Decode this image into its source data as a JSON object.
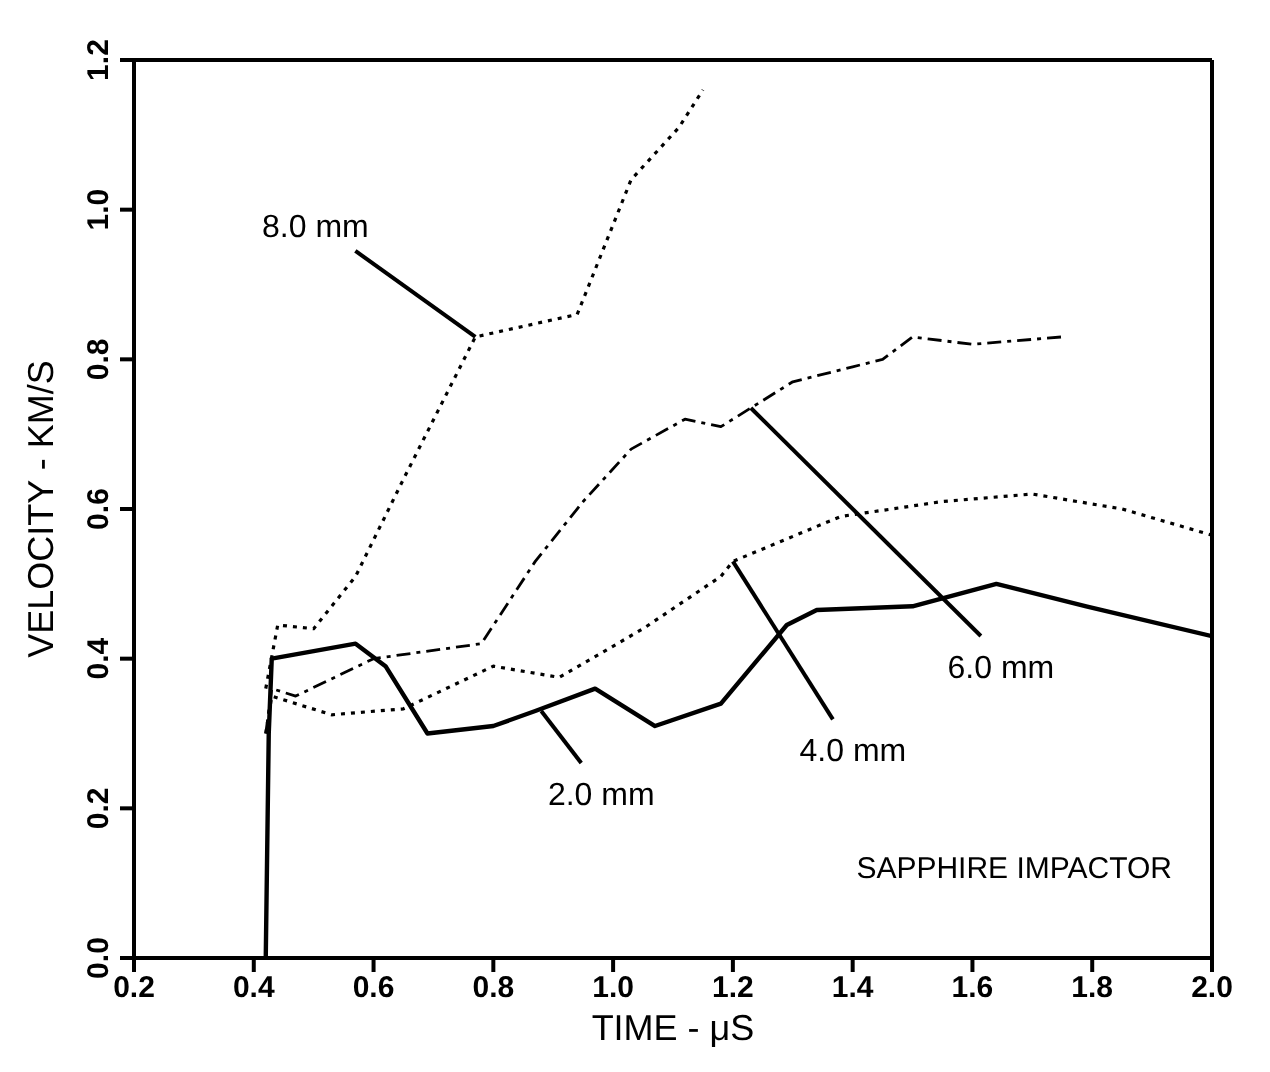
{
  "chart_data": {
    "type": "line",
    "xlabel": "TIME - μS",
    "ylabel": "VELOCITY - KM/S",
    "xlim": [
      0.2,
      2.0
    ],
    "xticks": [
      {
        "value": 0.2,
        "label": "0.2"
      },
      {
        "value": 0.4,
        "label": "0.4"
      },
      {
        "value": 0.6,
        "label": "0.6"
      },
      {
        "value": 0.8,
        "label": "0.8"
      },
      {
        "value": 1.0,
        "label": "1.0"
      },
      {
        "value": 1.2,
        "label": "1.2"
      },
      {
        "value": 1.4,
        "label": "1.4"
      },
      {
        "value": 1.6,
        "label": "1.6"
      },
      {
        "value": 1.8,
        "label": "1.8"
      },
      {
        "value": 2.0,
        "label": "2.0"
      }
    ],
    "ylim": [
      0,
      1.2
    ],
    "yticks": [
      {
        "value": 0,
        "label": "0.0"
      },
      {
        "value": 0.2,
        "label": "0.2"
      },
      {
        "value": 0.4,
        "label": "0.4"
      },
      {
        "value": 0.6,
        "label": "0.6"
      },
      {
        "value": 0.8,
        "label": "0.8"
      },
      {
        "value": 1.0,
        "label": "1.0"
      },
      {
        "value": 1.2,
        "label": "1.2"
      }
    ],
    "legend": false,
    "marker": "none",
    "series": [
      {
        "color": "#000000",
        "line_style": "solid",
        "x": [
          0.42,
          0.425,
          0.43,
          0.5,
          0.57,
          0.62,
          0.69,
          0.8,
          0.87,
          0.97,
          1.07,
          1.18,
          1.29,
          1.34,
          1.5,
          1.64,
          1.79,
          2.0
        ],
        "values": [
          0,
          0.3,
          0.4,
          0.41,
          0.42,
          0.39,
          0.3,
          0.31,
          0.33,
          0.36,
          0.31,
          0.34,
          0.445,
          0.465,
          0.47,
          0.5,
          0.47,
          0.43
        ]
      },
      {
        "color": "#000000",
        "line_style": "dotted",
        "x": [
          0.42,
          0.43,
          0.53,
          0.65,
          0.8,
          0.91,
          1.05,
          1.18,
          1.2,
          1.38,
          1.55,
          1.7,
          1.85,
          2.0
        ],
        "values": [
          0.3,
          0.35,
          0.325,
          0.333,
          0.39,
          0.375,
          0.44,
          0.51,
          0.53,
          0.59,
          0.61,
          0.62,
          0.6,
          0.565
        ]
      },
      {
        "color": "#000000",
        "line_style": "dashed",
        "x": [
          0.42,
          0.43,
          0.47,
          0.6,
          0.78,
          0.87,
          0.95,
          1.03,
          1.12,
          1.18,
          1.23,
          1.3,
          1.4,
          1.45,
          1.5,
          1.6,
          1.75
        ],
        "values": [
          0.3,
          0.36,
          0.35,
          0.4,
          0.42,
          0.53,
          0.61,
          0.68,
          0.72,
          0.71,
          0.735,
          0.77,
          0.79,
          0.8,
          0.83,
          0.82,
          0.83
        ]
      },
      {
        "color": "#000000",
        "line_style": "dotted",
        "x": [
          0.42,
          0.44,
          0.5,
          0.57,
          0.65,
          0.77,
          0.94,
          1.03,
          1.11,
          1.15
        ],
        "values": [
          0.36,
          0.445,
          0.44,
          0.51,
          0.64,
          0.83,
          0.86,
          1.04,
          1.11,
          1.16
        ]
      }
    ],
    "annotations": [
      {
        "text": "8.0 mm",
        "x": 0.77,
        "y": 0.83
      },
      {
        "text": "6.0 mm",
        "x": 1.23,
        "y": 0.735
      },
      {
        "text": "4.0 mm",
        "x": 1.2,
        "y": 0.53
      },
      {
        "text": "2.0 mm",
        "x": 0.88,
        "y": 0.33
      },
      "SAPPHIRE IMPACTOR"
    ]
  }
}
